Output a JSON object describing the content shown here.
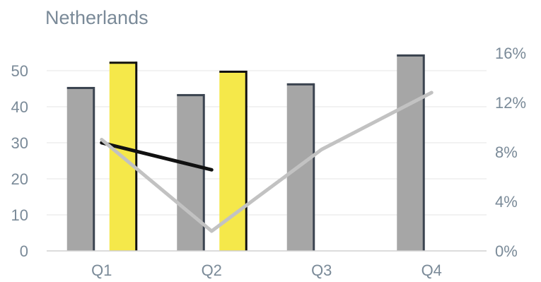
{
  "chart_data": {
    "type": "bar",
    "title": "Netherlands",
    "categories": [
      "Q1",
      "Q2",
      "Q3",
      "Q4"
    ],
    "y_left": {
      "ticks": [
        "0",
        "10",
        "20",
        "30",
        "40",
        "50"
      ],
      "ylim": [
        0,
        55
      ]
    },
    "y_right": {
      "ticks": [
        "0%",
        "4%",
        "8%",
        "12%",
        "16%"
      ],
      "ylim": [
        0,
        16
      ]
    },
    "grid": true,
    "bar_series": [
      {
        "color": "#a6a6a6",
        "edge_color": "#3b4450",
        "values": [
          45.5,
          43.5,
          46.5,
          54.5
        ]
      },
      {
        "color": "#f5e84a",
        "edge_color": "#111111",
        "values": [
          52.5,
          50,
          null,
          null
        ]
      }
    ],
    "line_series": [
      {
        "color": "#111111",
        "axis": "left",
        "values": [
          30,
          22.5,
          null,
          null
        ]
      },
      {
        "color": "#c2c2c2",
        "axis": "right",
        "values": [
          9,
          1.6,
          8.2,
          12.8
        ]
      }
    ]
  }
}
